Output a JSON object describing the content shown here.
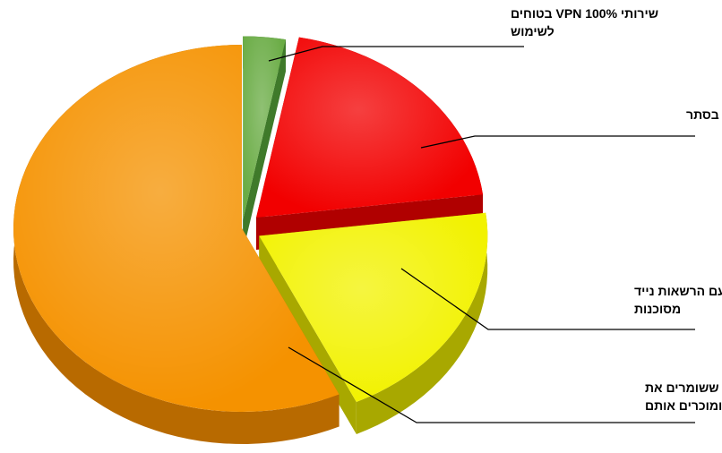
{
  "chart_data": {
    "type": "pie",
    "title": "",
    "style": "3d-exploded",
    "slices": [
      {
        "label_lines": [
          "שירותי VPN 100% בטוחים",
          "לשימוש"
        ],
        "value": 3,
        "color": "#6aac45",
        "side": "#3f7a2a"
      },
      {
        "label_lines": [
          "שירותי VPN שסין מחזיקה בסתר"
        ],
        "value": 20,
        "color": "#f20000",
        "side": "#b00000"
      },
      {
        "label_lines": [
          "שירותי VPN עם הרשאות נייד",
          "מסוכנות"
        ],
        "value": 20,
        "color": "#f2f200",
        "side": "#a8a800"
      },
      {
        "label_lines": [
          "שירותי VPN ששומרים את",
          "הנתונים שלכם ומוכרים אותם"
        ],
        "value": 57,
        "color": "#f59200",
        "side": "#b86a00"
      }
    ],
    "legend": "none"
  }
}
